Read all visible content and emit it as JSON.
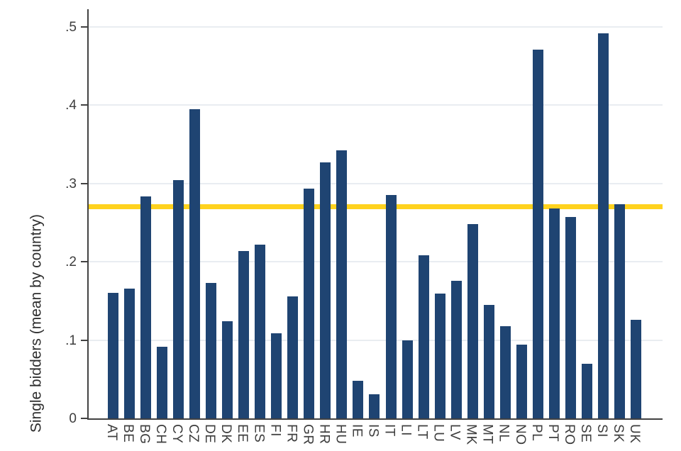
{
  "chart_data": {
    "type": "bar",
    "title": "",
    "xlabel": "",
    "ylabel": "Single bidders (mean by country)",
    "categories": [
      "AT",
      "BE",
      "BG",
      "CH",
      "CY",
      "CZ",
      "DE",
      "DK",
      "EE",
      "ES",
      "FI",
      "FR",
      "GR",
      "HR",
      "HU",
      "IE",
      "IS",
      "IT",
      "LI",
      "LT",
      "LU",
      "LV",
      "MK",
      "MT",
      "NL",
      "NO",
      "PL",
      "PT",
      "RO",
      "SE",
      "SI",
      "SK",
      "UK"
    ],
    "values": [
      0.16,
      0.166,
      0.283,
      0.091,
      0.304,
      0.395,
      0.173,
      0.124,
      0.214,
      0.222,
      0.109,
      0.156,
      0.293,
      0.327,
      0.342,
      0.048,
      0.031,
      0.285,
      0.1,
      0.208,
      0.159,
      0.176,
      0.248,
      0.145,
      0.118,
      0.094,
      0.471,
      0.268,
      0.257,
      0.07,
      0.491,
      0.273,
      0.126
    ],
    "yticks": [
      0,
      0.1,
      0.2,
      0.3,
      0.4,
      0.5
    ],
    "ytick_labels": [
      "0",
      ".1",
      ".2",
      ".3",
      ".4",
      ".5"
    ],
    "ylim": [
      0,
      0.522
    ],
    "grid": true,
    "legend": "none",
    "reference_line": {
      "value": 0.27,
      "label": ""
    },
    "colors": {
      "bar": "#1f4472",
      "reference": "#ffd21e",
      "grid": "#e9edf1",
      "axis": "#424242",
      "text": "#3d3d3d"
    }
  }
}
